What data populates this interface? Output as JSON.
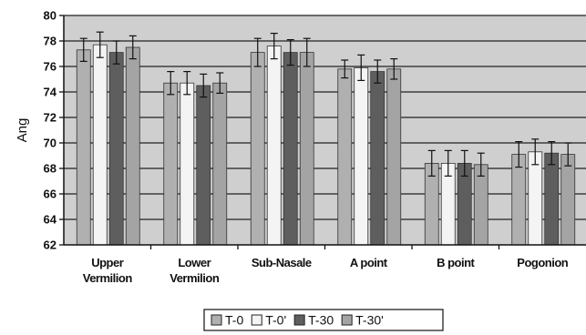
{
  "colors": {
    "plot_bg": "#cfcfcf",
    "grid": "#222222",
    "series": [
      "#b0b0b0",
      "#f4f4f4",
      "#5e5e5e",
      "#a4a4a4"
    ]
  },
  "chart_data": {
    "type": "bar",
    "ylabel": "Ang",
    "ylim": [
      62,
      80
    ],
    "yticks": [
      62,
      64,
      66,
      68,
      70,
      72,
      74,
      76,
      78,
      80
    ],
    "grid": true,
    "legend_position": "bottom",
    "categories": [
      [
        "Upper",
        "Vermilion"
      ],
      [
        "Lower",
        "Vermilion"
      ],
      [
        "Sub-Nasale"
      ],
      [
        "A point"
      ],
      [
        "B point"
      ],
      [
        "Pogonion"
      ]
    ],
    "series": [
      {
        "name": "T-0",
        "values": [
          77.3,
          74.7,
          77.1,
          75.8,
          68.4,
          69.1
        ],
        "errors": [
          0.9,
          0.9,
          1.1,
          0.7,
          1.0,
          1.0
        ]
      },
      {
        "name": "T-0'",
        "values": [
          77.7,
          74.7,
          77.6,
          75.9,
          68.4,
          69.3
        ],
        "errors": [
          1.0,
          0.9,
          1.0,
          1.0,
          1.0,
          1.0
        ]
      },
      {
        "name": "T-30",
        "values": [
          77.1,
          74.5,
          77.1,
          75.6,
          68.4,
          69.2
        ],
        "errors": [
          0.9,
          0.9,
          1.0,
          0.9,
          1.0,
          0.9
        ]
      },
      {
        "name": "T-30'",
        "values": [
          77.5,
          74.7,
          77.1,
          75.8,
          68.3,
          69.1
        ],
        "errors": [
          0.9,
          0.8,
          1.1,
          0.8,
          0.9,
          0.9
        ]
      }
    ]
  }
}
